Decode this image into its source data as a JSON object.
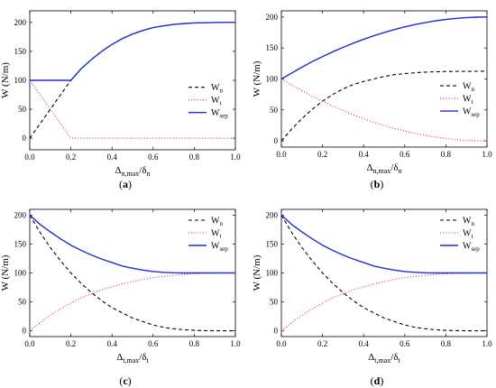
{
  "chart_data": [
    {
      "type": "line",
      "panel_label": "a",
      "xlabel": "Δn,max/δn",
      "xlabel_parts": {
        "main": "Δ",
        "sub": "n,max",
        "slash": "/δ",
        "sub2": "n"
      },
      "ylabel": "W (N/m)",
      "xlim": [
        0,
        1.0
      ],
      "ylim": [
        -20,
        220
      ],
      "xticks": [
        "0.0",
        "0.2",
        "0.4",
        "0.6",
        "0.8",
        "1.0"
      ],
      "yticks": [
        "0",
        "50",
        "100",
        "150",
        "200"
      ],
      "legend_position": "right-middle",
      "series": [
        {
          "name": "Wn",
          "name_main": "W",
          "name_sub": "n",
          "style": "dash",
          "color": "#000000",
          "x": [
            0,
            0.05,
            0.1,
            0.15,
            0.2,
            0.25,
            0.3,
            0.35,
            0.4,
            0.45,
            0.5,
            0.55,
            0.6,
            0.65,
            0.7,
            0.75,
            0.8,
            0.85,
            0.9,
            0.95,
            1.0
          ],
          "y": [
            0,
            25,
            50,
            75,
            100,
            120,
            136,
            150,
            162,
            172,
            180,
            186,
            191,
            194,
            196.5,
            198,
            199,
            199.5,
            199.8,
            200,
            200
          ]
        },
        {
          "name": "Wt",
          "name_main": "W",
          "name_sub": "t",
          "style": "dot",
          "color": "#e8262a",
          "x": [
            0,
            0.05,
            0.1,
            0.15,
            0.2,
            0.25,
            0.3,
            0.4,
            0.5,
            0.6,
            0.7,
            0.8,
            0.9,
            1.0
          ],
          "y": [
            100,
            75,
            50,
            25,
            0,
            0,
            0,
            0,
            0,
            0,
            0,
            0,
            0,
            0
          ]
        },
        {
          "name": "Wsep",
          "name_main": "W",
          "name_sub": "sep",
          "style": "solid",
          "color": "#1f2fd0",
          "x": [
            0,
            0.05,
            0.1,
            0.15,
            0.2,
            0.25,
            0.3,
            0.35,
            0.4,
            0.45,
            0.5,
            0.55,
            0.6,
            0.65,
            0.7,
            0.75,
            0.8,
            0.85,
            0.9,
            0.95,
            1.0
          ],
          "y": [
            100,
            100,
            100,
            100,
            100,
            120,
            136,
            150,
            162,
            172,
            180,
            186,
            191,
            194,
            196.5,
            198,
            199,
            199.5,
            199.8,
            200,
            200
          ]
        }
      ]
    },
    {
      "type": "line",
      "panel_label": "b",
      "xlabel": "Δn,max/δn",
      "xlabel_parts": {
        "main": "Δ",
        "sub": "n,max",
        "slash": "/δ",
        "sub2": "n"
      },
      "ylabel": "W (N/m)",
      "xlim": [
        0,
        1.0
      ],
      "ylim": [
        -10,
        210
      ],
      "xticks": [
        "0.0",
        "0.2",
        "0.4",
        "0.6",
        "0.8",
        "1.0"
      ],
      "yticks": [
        "0",
        "50",
        "100",
        "150",
        "200"
      ],
      "legend_position": "right-middle",
      "series": [
        {
          "name": "Wn",
          "name_main": "W",
          "name_sub": "n",
          "style": "dash",
          "color": "#000000",
          "x": [
            0,
            0.05,
            0.1,
            0.15,
            0.2,
            0.25,
            0.3,
            0.35,
            0.4,
            0.45,
            0.5,
            0.55,
            0.6,
            0.65,
            0.7,
            0.75,
            0.8,
            0.85,
            0.9,
            0.95,
            1.0
          ],
          "y": [
            0,
            19,
            36,
            51,
            64,
            75,
            84,
            91,
            96,
            100,
            104,
            107,
            108.6,
            110,
            111,
            111.6,
            112,
            112.2,
            112.3,
            112.4,
            112.5
          ]
        },
        {
          "name": "Wt",
          "name_main": "W",
          "name_sub": "t",
          "style": "dot",
          "color": "#e8262a",
          "x": [
            0,
            0.05,
            0.1,
            0.15,
            0.2,
            0.25,
            0.3,
            0.35,
            0.4,
            0.45,
            0.5,
            0.55,
            0.6,
            0.65,
            0.7,
            0.75,
            0.8,
            0.85,
            0.9,
            0.95,
            1.0
          ],
          "y": [
            100,
            90,
            81,
            72,
            64,
            56,
            49,
            42,
            36,
            30,
            25,
            20,
            16,
            12,
            9,
            6,
            4,
            2,
            1,
            0.3,
            0
          ]
        },
        {
          "name": "Wsep",
          "name_main": "W",
          "name_sub": "sep",
          "style": "solid",
          "color": "#1f2fd0",
          "x": [
            0,
            0.05,
            0.1,
            0.15,
            0.2,
            0.25,
            0.3,
            0.35,
            0.4,
            0.45,
            0.5,
            0.55,
            0.6,
            0.65,
            0.7,
            0.75,
            0.8,
            0.85,
            0.9,
            0.95,
            1.0
          ],
          "y": [
            100,
            109.5,
            119,
            128,
            136,
            143.8,
            151,
            157.8,
            164,
            169.8,
            175,
            179.8,
            184,
            187.8,
            191,
            193.8,
            196,
            197.8,
            199,
            199.8,
            200
          ]
        }
      ]
    },
    {
      "type": "line",
      "panel_label": "c",
      "xlabel": "Δt,max/δt",
      "xlabel_parts": {
        "main": "Δ",
        "sub": "t,max",
        "slash": "/δ",
        "sub2": "t"
      },
      "ylabel": "W (N/m)",
      "xlim": [
        0,
        1.0
      ],
      "ylim": [
        -10,
        210
      ],
      "xticks": [
        "0.0",
        "0.2",
        "0.4",
        "0.6",
        "0.8",
        "1.0"
      ],
      "yticks": [
        "0",
        "50",
        "100",
        "150",
        "200"
      ],
      "legend_position": "top-right",
      "series": [
        {
          "name": "Wn",
          "name_main": "W",
          "name_sub": "n",
          "style": "dash",
          "color": "#000000",
          "x": [
            0,
            0.05,
            0.1,
            0.15,
            0.2,
            0.25,
            0.3,
            0.35,
            0.4,
            0.45,
            0.5,
            0.55,
            0.6,
            0.65,
            0.7,
            0.75,
            0.8,
            0.85,
            0.9,
            0.95,
            1.0
          ],
          "y": [
            200,
            170,
            144,
            121,
            100,
            82,
            66,
            52,
            40,
            31,
            22,
            16,
            10,
            6,
            3.5,
            1.8,
            0.8,
            0.3,
            0.1,
            0,
            0
          ]
        },
        {
          "name": "Wt",
          "name_main": "W",
          "name_sub": "t",
          "style": "dot",
          "color": "#e8262a",
          "x": [
            0,
            0.05,
            0.1,
            0.15,
            0.2,
            0.25,
            0.3,
            0.35,
            0.4,
            0.45,
            0.5,
            0.55,
            0.6,
            0.65,
            0.7,
            0.75,
            0.8,
            0.85,
            0.9,
            0.95,
            1.0
          ],
          "y": [
            0,
            14,
            27,
            38,
            48,
            57,
            64,
            71,
            76,
            81,
            85,
            89,
            92,
            94,
            96,
            97.5,
            98.5,
            99.3,
            99.7,
            100,
            100
          ]
        },
        {
          "name": "Wsep",
          "name_main": "W",
          "name_sub": "sep",
          "style": "solid",
          "color": "#1f2fd0",
          "x": [
            0,
            0.05,
            0.1,
            0.15,
            0.2,
            0.25,
            0.3,
            0.35,
            0.4,
            0.45,
            0.5,
            0.55,
            0.6,
            0.65,
            0.7,
            0.75,
            0.8,
            0.85,
            0.9,
            0.95,
            1.0
          ],
          "y": [
            200,
            184,
            171,
            159,
            148,
            139,
            131,
            124,
            118,
            112,
            108,
            105,
            102.5,
            101,
            100.3,
            100,
            100,
            100,
            100,
            100,
            100
          ]
        }
      ]
    },
    {
      "type": "line",
      "panel_label": "d",
      "xlabel": "Δt,max/δt",
      "xlabel_parts": {
        "main": "Δ",
        "sub": "t,max",
        "slash": "/δ",
        "sub2": "t"
      },
      "ylabel": "W (N/m)",
      "xlim": [
        0,
        1.0
      ],
      "ylim": [
        -10,
        210
      ],
      "xticks": [
        "0.0",
        "0.2",
        "0.4",
        "0.6",
        "0.8",
        "1.0"
      ],
      "yticks": [
        "0",
        "50",
        "100",
        "150",
        "200"
      ],
      "legend_position": "top-right",
      "series": [
        {
          "name": "Wn",
          "name_main": "W",
          "name_sub": "n",
          "style": "dash",
          "color": "#000000",
          "x": [
            0,
            0.05,
            0.1,
            0.15,
            0.2,
            0.25,
            0.3,
            0.35,
            0.4,
            0.45,
            0.5,
            0.55,
            0.6,
            0.65,
            0.7,
            0.75,
            0.8,
            0.85,
            0.9,
            0.95,
            1.0
          ],
          "y": [
            200,
            170,
            144,
            121,
            100,
            82,
            66,
            52,
            40,
            31,
            22,
            16,
            10,
            6,
            3.5,
            1.8,
            0.8,
            0.3,
            0.1,
            0,
            0
          ]
        },
        {
          "name": "Wt",
          "name_main": "W",
          "name_sub": "t",
          "style": "dot",
          "color": "#e8262a",
          "x": [
            0,
            0.05,
            0.1,
            0.15,
            0.2,
            0.25,
            0.3,
            0.35,
            0.4,
            0.45,
            0.5,
            0.55,
            0.6,
            0.65,
            0.7,
            0.75,
            0.8,
            0.85,
            0.9,
            0.95,
            1.0
          ],
          "y": [
            0,
            14,
            27,
            38,
            48,
            57,
            64,
            71,
            76,
            81,
            85,
            89,
            92,
            94,
            96,
            97.5,
            98.5,
            99.3,
            99.7,
            100,
            100
          ]
        },
        {
          "name": "Wsep",
          "name_main": "W",
          "name_sub": "sep",
          "style": "solid",
          "color": "#1f2fd0",
          "x": [
            0,
            0.05,
            0.1,
            0.15,
            0.2,
            0.25,
            0.3,
            0.35,
            0.4,
            0.45,
            0.5,
            0.55,
            0.6,
            0.65,
            0.7,
            0.75,
            0.8,
            0.85,
            0.9,
            0.95,
            1.0
          ],
          "y": [
            200,
            184,
            171,
            159,
            148,
            139,
            131,
            124,
            118,
            112,
            108,
            105,
            102.5,
            101,
            100.3,
            100,
            100,
            100,
            100,
            100,
            100
          ]
        }
      ]
    }
  ]
}
